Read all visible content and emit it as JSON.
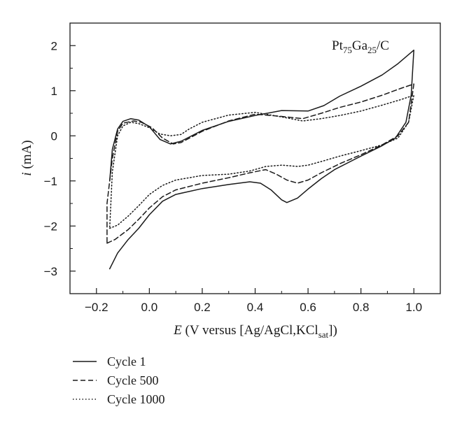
{
  "chart_data": {
    "type": "line",
    "annotation": {
      "main": "Pt",
      "sub1": "75",
      "mid": "Ga",
      "sub2": "25",
      "tail": "/C"
    },
    "xlabel": {
      "italic": "E",
      "text": " (V versus [Ag/AgCl,KCl",
      "sub": "sat",
      "tail": "])"
    },
    "ylabel": {
      "italic": "i",
      "text": " (mA)"
    },
    "xlim": [
      -0.3,
      1.1
    ],
    "ylim": [
      -3.5,
      2.5
    ],
    "x_major_ticks": [
      -0.2,
      0.0,
      0.2,
      0.4,
      0.6,
      0.8,
      1.0
    ],
    "x_tick_labels": [
      "−0.2",
      "0.0",
      "0.2",
      "0.4",
      "0.6",
      "0.8",
      "1.0"
    ],
    "x_minor_ticks": [
      -0.3,
      -0.1,
      0.1,
      0.3,
      0.5,
      0.7,
      0.9,
      1.1
    ],
    "y_major_ticks": [
      -3,
      -2,
      -1,
      0,
      1,
      2
    ],
    "y_tick_labels": [
      "−3",
      "−2",
      "−1",
      "0",
      "1",
      "2"
    ],
    "y_minor_ticks": [
      -3.5,
      -2.5,
      -1.5,
      -0.5,
      0.5,
      1.5,
      2.5
    ],
    "grid": false,
    "legend_position": "below",
    "series": [
      {
        "name": "Cycle 1",
        "style": "solid",
        "color": "#1a1a1a",
        "points": [
          [
            -0.15,
            -2.95
          ],
          [
            -0.12,
            -2.6
          ],
          [
            -0.08,
            -2.3
          ],
          [
            -0.04,
            -2.05
          ],
          [
            0.0,
            -1.75
          ],
          [
            0.05,
            -1.45
          ],
          [
            0.1,
            -1.3
          ],
          [
            0.2,
            -1.17
          ],
          [
            0.3,
            -1.08
          ],
          [
            0.38,
            -1.02
          ],
          [
            0.42,
            -1.05
          ],
          [
            0.46,
            -1.2
          ],
          [
            0.5,
            -1.42
          ],
          [
            0.52,
            -1.48
          ],
          [
            0.56,
            -1.38
          ],
          [
            0.6,
            -1.18
          ],
          [
            0.65,
            -0.95
          ],
          [
            0.7,
            -0.75
          ],
          [
            0.8,
            -0.45
          ],
          [
            0.88,
            -0.22
          ],
          [
            0.93,
            -0.05
          ],
          [
            0.97,
            0.3
          ],
          [
            0.99,
            0.9
          ],
          [
            1.0,
            1.9
          ],
          [
            0.94,
            1.6
          ],
          [
            0.88,
            1.35
          ],
          [
            0.8,
            1.1
          ],
          [
            0.72,
            0.88
          ],
          [
            0.66,
            0.67
          ],
          [
            0.6,
            0.55
          ],
          [
            0.5,
            0.56
          ],
          [
            0.4,
            0.45
          ],
          [
            0.3,
            0.32
          ],
          [
            0.2,
            0.12
          ],
          [
            0.12,
            -0.12
          ],
          [
            0.08,
            -0.18
          ],
          [
            0.04,
            -0.08
          ],
          [
            0.0,
            0.2
          ],
          [
            -0.04,
            0.35
          ],
          [
            -0.07,
            0.38
          ],
          [
            -0.1,
            0.32
          ],
          [
            -0.12,
            0.15
          ],
          [
            -0.14,
            -0.3
          ],
          [
            -0.15,
            -1.0
          ]
        ]
      },
      {
        "name": "Cycle 500",
        "style": "dashed",
        "color": "#1a1a1a",
        "points": [
          [
            -0.16,
            -2.38
          ],
          [
            -0.13,
            -2.3
          ],
          [
            -0.08,
            -2.08
          ],
          [
            -0.04,
            -1.85
          ],
          [
            0.0,
            -1.6
          ],
          [
            0.05,
            -1.35
          ],
          [
            0.1,
            -1.2
          ],
          [
            0.2,
            -1.05
          ],
          [
            0.3,
            -0.93
          ],
          [
            0.38,
            -0.82
          ],
          [
            0.44,
            -0.75
          ],
          [
            0.48,
            -0.85
          ],
          [
            0.52,
            -0.98
          ],
          [
            0.56,
            -1.05
          ],
          [
            0.6,
            -0.98
          ],
          [
            0.65,
            -0.82
          ],
          [
            0.72,
            -0.62
          ],
          [
            0.8,
            -0.42
          ],
          [
            0.88,
            -0.2
          ],
          [
            0.94,
            0.0
          ],
          [
            0.98,
            0.3
          ],
          [
            1.0,
            1.15
          ],
          [
            0.95,
            1.05
          ],
          [
            0.88,
            0.9
          ],
          [
            0.8,
            0.75
          ],
          [
            0.72,
            0.63
          ],
          [
            0.65,
            0.5
          ],
          [
            0.58,
            0.38
          ],
          [
            0.5,
            0.43
          ],
          [
            0.4,
            0.48
          ],
          [
            0.3,
            0.33
          ],
          [
            0.2,
            0.1
          ],
          [
            0.12,
            -0.15
          ],
          [
            0.09,
            -0.18
          ],
          [
            0.05,
            -0.05
          ],
          [
            0.01,
            0.18
          ],
          [
            -0.03,
            0.3
          ],
          [
            -0.06,
            0.33
          ],
          [
            -0.1,
            0.28
          ],
          [
            -0.12,
            0.1
          ],
          [
            -0.14,
            -0.5
          ],
          [
            -0.16,
            -1.5
          ],
          [
            -0.16,
            -2.38
          ]
        ]
      },
      {
        "name": "Cycle 1000",
        "style": "dotted",
        "color": "#1a1a1a",
        "points": [
          [
            -0.15,
            -2.05
          ],
          [
            -0.12,
            -1.98
          ],
          [
            -0.08,
            -1.78
          ],
          [
            -0.04,
            -1.55
          ],
          [
            0.0,
            -1.3
          ],
          [
            0.05,
            -1.1
          ],
          [
            0.1,
            -0.98
          ],
          [
            0.2,
            -0.88
          ],
          [
            0.3,
            -0.85
          ],
          [
            0.38,
            -0.78
          ],
          [
            0.44,
            -0.68
          ],
          [
            0.5,
            -0.65
          ],
          [
            0.56,
            -0.68
          ],
          [
            0.6,
            -0.65
          ],
          [
            0.65,
            -0.57
          ],
          [
            0.72,
            -0.45
          ],
          [
            0.8,
            -0.33
          ],
          [
            0.88,
            -0.2
          ],
          [
            0.94,
            -0.05
          ],
          [
            0.98,
            0.3
          ],
          [
            1.0,
            0.9
          ],
          [
            0.95,
            0.8
          ],
          [
            0.88,
            0.68
          ],
          [
            0.8,
            0.55
          ],
          [
            0.72,
            0.45
          ],
          [
            0.65,
            0.38
          ],
          [
            0.58,
            0.33
          ],
          [
            0.5,
            0.42
          ],
          [
            0.4,
            0.52
          ],
          [
            0.3,
            0.46
          ],
          [
            0.2,
            0.3
          ],
          [
            0.15,
            0.15
          ],
          [
            0.12,
            0.03
          ],
          [
            0.08,
            0.0
          ],
          [
            0.04,
            0.04
          ],
          [
            0.0,
            0.18
          ],
          [
            -0.04,
            0.27
          ],
          [
            -0.07,
            0.3
          ],
          [
            -0.1,
            0.22
          ],
          [
            -0.12,
            0.0
          ],
          [
            -0.14,
            -0.8
          ],
          [
            -0.15,
            -2.05
          ]
        ]
      }
    ]
  }
}
